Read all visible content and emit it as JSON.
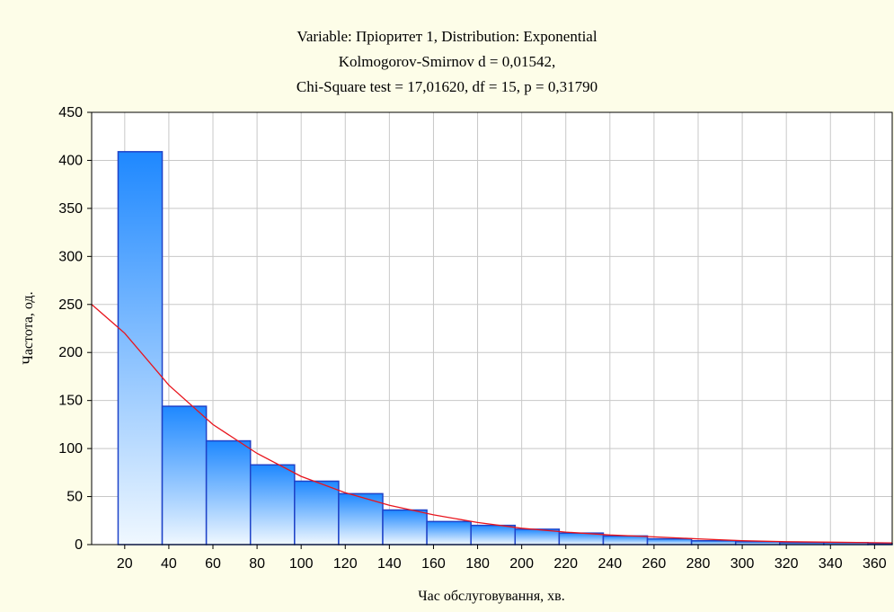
{
  "chart_data": {
    "type": "bar",
    "title": [
      "Variable: Пріоритет 1, Distribution: Exponential",
      "Kolmogorov-Smirnov d = 0,01542,",
      "Chi-Square test = 17,01620, df = 15, p = 0,31790"
    ],
    "xlabel": "Час обслуговування, хв.",
    "ylabel": "Частота, од.",
    "xlim": [
      5,
      368
    ],
    "ylim": [
      0,
      450
    ],
    "xticks": [
      20,
      40,
      60,
      80,
      100,
      120,
      140,
      160,
      180,
      200,
      220,
      240,
      260,
      280,
      300,
      320,
      340,
      360
    ],
    "yticks": [
      0,
      50,
      100,
      150,
      200,
      250,
      300,
      350,
      400,
      450
    ],
    "grid": true,
    "bin_width": 20,
    "bins": [
      {
        "x0": 17,
        "x1": 37,
        "value": 409
      },
      {
        "x0": 37,
        "x1": 57,
        "value": 144
      },
      {
        "x0": 57,
        "x1": 77,
        "value": 108
      },
      {
        "x0": 77,
        "x1": 97,
        "value": 83
      },
      {
        "x0": 97,
        "x1": 117,
        "value": 66
      },
      {
        "x0": 117,
        "x1": 137,
        "value": 53
      },
      {
        "x0": 137,
        "x1": 157,
        "value": 36
      },
      {
        "x0": 157,
        "x1": 177,
        "value": 24
      },
      {
        "x0": 177,
        "x1": 197,
        "value": 20
      },
      {
        "x0": 197,
        "x1": 217,
        "value": 16
      },
      {
        "x0": 217,
        "x1": 237,
        "value": 12
      },
      {
        "x0": 237,
        "x1": 257,
        "value": 9
      },
      {
        "x0": 257,
        "x1": 277,
        "value": 6
      },
      {
        "x0": 277,
        "x1": 297,
        "value": 4
      },
      {
        "x0": 297,
        "x1": 317,
        "value": 3
      },
      {
        "x0": 317,
        "x1": 337,
        "value": 2
      },
      {
        "x0": 337,
        "x1": 357,
        "value": 2
      },
      {
        "x0": 357,
        "x1": 368,
        "value": 1
      }
    ],
    "fit_curve": {
      "distribution": "Exponential",
      "points": [
        [
          5,
          250
        ],
        [
          20,
          220
        ],
        [
          40,
          166
        ],
        [
          60,
          125
        ],
        [
          80,
          95
        ],
        [
          100,
          71
        ],
        [
          120,
          54
        ],
        [
          140,
          41
        ],
        [
          160,
          31
        ],
        [
          180,
          23
        ],
        [
          200,
          17
        ],
        [
          220,
          13
        ],
        [
          240,
          10
        ],
        [
          260,
          8
        ],
        [
          280,
          6
        ],
        [
          300,
          4
        ],
        [
          320,
          3
        ],
        [
          340,
          2.5
        ],
        [
          368,
          1.8
        ]
      ]
    },
    "colors": {
      "bar_top": "#1e88ff",
      "bar_bottom": "#f0f8ff",
      "bar_stroke": "#1f43c8",
      "curve": "#e8141c",
      "grid": "#c8c8c8",
      "plot_bg": "#ffffff",
      "page_bg": "#fdfde8"
    }
  }
}
